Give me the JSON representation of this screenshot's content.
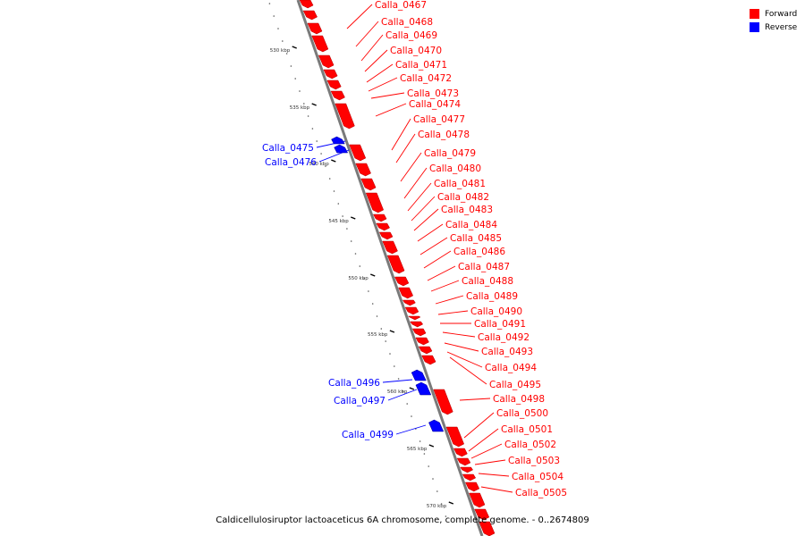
{
  "caption": "Caldicellulosiruptor lactoaceticus 6A chromosome, complete genome. - 0..2674809",
  "legend": [
    {
      "label": "Forward",
      "color": "#ff0000"
    },
    {
      "label": "Reverse",
      "color": "#0000ff"
    }
  ],
  "scale_labels": [
    "530 kbp",
    "535 kbp",
    "540 kbp",
    "545 kbp",
    "550 kbp",
    "555 kbp",
    "560 kbp",
    "565 kbp",
    "570 kbp"
  ],
  "genes": [
    {
      "name": "Calla_0467",
      "strand": "forward"
    },
    {
      "name": "Calla_0468",
      "strand": "forward"
    },
    {
      "name": "Calla_0469",
      "strand": "forward"
    },
    {
      "name": "Calla_0470",
      "strand": "forward"
    },
    {
      "name": "Calla_0471",
      "strand": "forward"
    },
    {
      "name": "Calla_0472",
      "strand": "forward"
    },
    {
      "name": "Calla_0473",
      "strand": "forward"
    },
    {
      "name": "Calla_0474",
      "strand": "forward"
    },
    {
      "name": "Calla_0475",
      "strand": "reverse"
    },
    {
      "name": "Calla_0476",
      "strand": "reverse"
    },
    {
      "name": "Calla_0477",
      "strand": "forward"
    },
    {
      "name": "Calla_0478",
      "strand": "forward"
    },
    {
      "name": "Calla_0479",
      "strand": "forward"
    },
    {
      "name": "Calla_0480",
      "strand": "forward"
    },
    {
      "name": "Calla_0481",
      "strand": "forward"
    },
    {
      "name": "Calla_0482",
      "strand": "forward"
    },
    {
      "name": "Calla_0483",
      "strand": "forward"
    },
    {
      "name": "Calla_0484",
      "strand": "forward"
    },
    {
      "name": "Calla_0485",
      "strand": "forward"
    },
    {
      "name": "Calla_0486",
      "strand": "forward"
    },
    {
      "name": "Calla_0487",
      "strand": "forward"
    },
    {
      "name": "Calla_0488",
      "strand": "forward"
    },
    {
      "name": "Calla_0489",
      "strand": "forward"
    },
    {
      "name": "Calla_0490",
      "strand": "forward"
    },
    {
      "name": "Calla_0491",
      "strand": "forward"
    },
    {
      "name": "Calla_0492",
      "strand": "forward"
    },
    {
      "name": "Calla_0493",
      "strand": "forward"
    },
    {
      "name": "Calla_0494",
      "strand": "forward"
    },
    {
      "name": "Calla_0495",
      "strand": "forward"
    },
    {
      "name": "Calla_0496",
      "strand": "reverse"
    },
    {
      "name": "Calla_0497",
      "strand": "reverse"
    },
    {
      "name": "Calla_0498",
      "strand": "forward"
    },
    {
      "name": "Calla_0499",
      "strand": "reverse"
    },
    {
      "name": "Calla_0500",
      "strand": "forward"
    },
    {
      "name": "Calla_0501",
      "strand": "forward"
    },
    {
      "name": "Calla_0502",
      "strand": "forward"
    },
    {
      "name": "Calla_0503",
      "strand": "forward"
    },
    {
      "name": "Calla_0504",
      "strand": "forward"
    },
    {
      "name": "Calla_0505",
      "strand": "forward"
    }
  ]
}
